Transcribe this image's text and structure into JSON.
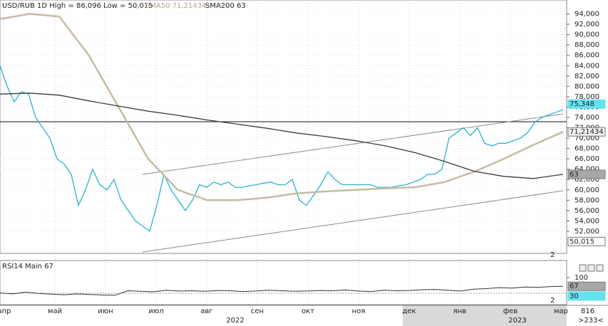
{
  "chart_data": {
    "type": "line",
    "title": "USD/RUB 1D High = 86,096 Low = 50,015",
    "sma50_label": "SMA50 71,21434",
    "sma200_label": "SMA200 63",
    "ylim": [
      48000,
      96000
    ],
    "yticks": [
      {
        "value": 94000,
        "label": "94,000"
      },
      {
        "value": 92000,
        "label": "92,000"
      },
      {
        "value": 90000,
        "label": "90,000"
      },
      {
        "value": 88000,
        "label": "88,000"
      },
      {
        "value": 86000,
        "label": "86,000"
      },
      {
        "value": 84000,
        "label": "84,000"
      },
      {
        "value": 82000,
        "label": "82,000"
      },
      {
        "value": 80000,
        "label": "80,000"
      },
      {
        "value": 78000,
        "label": "78,000"
      },
      {
        "value": 76000,
        "label": "76,000"
      },
      {
        "value": 74000,
        "label": "74,000"
      },
      {
        "value": 72000,
        "label": "72,000"
      },
      {
        "value": 70000,
        "label": "70,000"
      },
      {
        "value": 68000,
        "label": "68,000"
      },
      {
        "value": 66000,
        "label": "66,000"
      },
      {
        "value": 64000,
        "label": "64,000"
      },
      {
        "value": 62000,
        "label": "62,000"
      },
      {
        "value": 60000,
        "label": "60,000"
      },
      {
        "value": 58000,
        "label": "58,000"
      },
      {
        "value": 56000,
        "label": "56,000"
      },
      {
        "value": 54000,
        "label": "54,000"
      },
      {
        "value": 52000,
        "label": "52,000"
      }
    ],
    "series": [
      {
        "name": "USD/RUB",
        "color": "#27b4cf",
        "values": [
          84000,
          80000,
          77000,
          79000,
          78500,
          74000,
          72000,
          70000,
          66000,
          65000,
          63000,
          57000,
          60000,
          64000,
          61000,
          60000,
          62000,
          58000,
          56000,
          54000,
          53000,
          52000,
          57000,
          63000,
          60000,
          58000,
          56000,
          58000,
          61000,
          60500,
          61500,
          61000,
          61500,
          60500,
          60500,
          60800,
          61000,
          61300,
          61500,
          61000,
          61000,
          62000,
          58000,
          57000,
          59000,
          61000,
          63500,
          62000,
          61000,
          61000,
          61000,
          61000,
          61000,
          60500,
          60500,
          60500,
          60800,
          61000,
          61500,
          62000,
          63000,
          63000,
          64000,
          70000,
          71000,
          72000,
          70500,
          72000,
          69000,
          68500,
          69000,
          69000,
          69500,
          70000,
          71000,
          73000,
          74000,
          74500,
          75000,
          75500
        ]
      },
      {
        "name": "SMA50",
        "color": "#c7bba3",
        "values": [
          93000,
          94000,
          93500,
          86000,
          76000,
          66000,
          60000,
          58000,
          58000,
          58500,
          59300,
          59700,
          60000,
          60300,
          60500,
          61500,
          63500,
          66000,
          68700,
          71214
        ]
      },
      {
        "name": "SMA200",
        "color": "#3a3a3a",
        "values": [
          78500,
          78700,
          78300,
          77200,
          76200,
          75200,
          74400,
          73500,
          72700,
          71900,
          71000,
          70300,
          69500,
          68500,
          67200,
          65500,
          63600,
          62600,
          62200,
          63000
        ]
      }
    ],
    "price_labels": [
      {
        "value": 75348,
        "label": "75,348"
      },
      {
        "value": 71214,
        "label": "71,21434"
      },
      {
        "value": 63000,
        "label": "63"
      },
      {
        "value": 50015,
        "label": "50,015"
      }
    ],
    "rsi": {
      "label": "RSI14 Main 67",
      "ylim": [
        0,
        100
      ],
      "yticks": [
        100
      ],
      "levels": [
        {
          "value": 67,
          "label": "67"
        },
        {
          "value": 30,
          "label": "30"
        }
      ],
      "values": [
        42,
        38,
        45,
        40,
        37,
        35,
        38,
        36,
        34,
        33,
        50,
        48,
        46,
        52,
        49,
        50,
        48,
        51,
        50,
        47,
        49,
        52,
        50,
        48,
        49,
        51,
        50,
        53,
        49,
        47,
        52,
        50,
        51,
        54,
        55,
        52,
        49,
        56,
        58,
        62,
        60,
        64,
        63,
        66,
        67
      ]
    },
    "x_labels": [
      "апр",
      "май",
      "июн",
      "июл",
      "авг",
      "сен",
      "окт",
      "ноя",
      "дек",
      "янв",
      "фев",
      "мар"
    ],
    "years": [
      "2022",
      "2023"
    ],
    "bar_count": "816",
    "scroll": ">233<",
    "pane_marks": [
      "2",
      "2"
    ]
  }
}
